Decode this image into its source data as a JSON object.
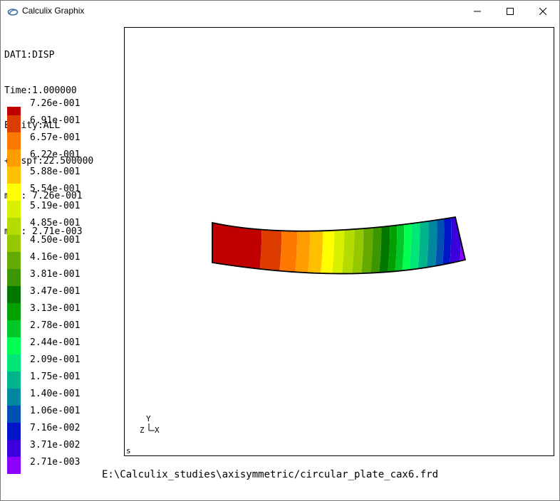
{
  "window": {
    "title": "Calculix Graphix",
    "icons": {
      "app": "calculix-logo-icon",
      "minimize": "minimize-icon",
      "maximize": "maximize-icon",
      "close": "close-icon"
    }
  },
  "info": {
    "dataset": "DAT1:DISP",
    "time": "Time:1.000000",
    "entity": "Entity:ALL",
    "dispf": "+Dispf:22.500000",
    "max": "max: 7.26e-001",
    "min": "min: 2.71e-003"
  },
  "legend": [
    {
      "label": "7.26e-001",
      "color": "#c00000"
    },
    {
      "label": "6.91e-001",
      "color": "#dc3c00"
    },
    {
      "label": "6.57e-001",
      "color": "#ff7800"
    },
    {
      "label": "6.22e-001",
      "color": "#ff9c00"
    },
    {
      "label": "5.88e-001",
      "color": "#ffc000"
    },
    {
      "label": "5.54e-001",
      "color": "#ffff00"
    },
    {
      "label": "5.19e-001",
      "color": "#d8f000"
    },
    {
      "label": "4.85e-001",
      "color": "#b4dc00"
    },
    {
      "label": "4.50e-001",
      "color": "#96c800"
    },
    {
      "label": "4.16e-001",
      "color": "#64aa00"
    },
    {
      "label": "3.81e-001",
      "color": "#3c9600"
    },
    {
      "label": "3.47e-001",
      "color": "#007800"
    },
    {
      "label": "3.13e-001",
      "color": "#00a000"
    },
    {
      "label": "2.78e-001",
      "color": "#00c828"
    },
    {
      "label": "2.44e-001",
      "color": "#00ff50"
    },
    {
      "label": "2.09e-001",
      "color": "#00e678"
    },
    {
      "label": "1.75e-001",
      "color": "#00b48c"
    },
    {
      "label": "1.40e-001",
      "color": "#0087a0"
    },
    {
      "label": "1.06e-001",
      "color": "#0050b4"
    },
    {
      "label": "7.16e-002",
      "color": "#0014c8"
    },
    {
      "label": "3.71e-002",
      "color": "#3c00dc"
    },
    {
      "label": "2.71e-003",
      "color": "#8c00ff"
    }
  ],
  "viewport": {
    "axes": {
      "y": "Y",
      "z": "Z",
      "x": "X"
    },
    "corner": "s"
  },
  "footer": {
    "file": "E:\\Calculix_studies\\axisymmetric/circular_plate_cax6.frd"
  }
}
